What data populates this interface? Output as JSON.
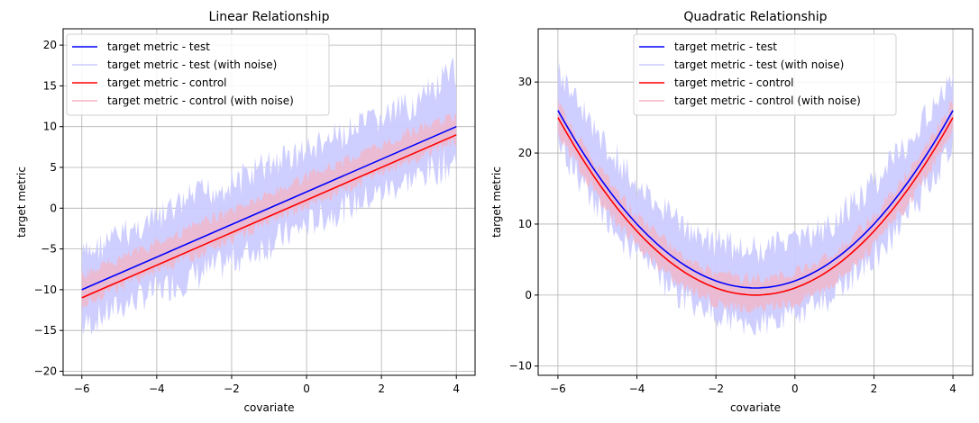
{
  "colors": {
    "test": "#0000ff",
    "control": "#ff0000",
    "test_noise": "#ccccff",
    "control_noise": "#f4b4c4",
    "grid": "#b0b0b0",
    "axis": "#000000"
  },
  "chart_data": [
    {
      "type": "line",
      "title": "Linear Relationship",
      "xlabel": "covariate",
      "ylabel": "target metric",
      "xlim": [
        -6.5,
        4.5
      ],
      "ylim": [
        -20.5,
        22
      ],
      "x_ticks": [
        -6,
        -4,
        -2,
        0,
        2,
        4
      ],
      "x_tick_labels": [
        "−6",
        "−4",
        "−2",
        "0",
        "2",
        "4"
      ],
      "y_ticks": [
        -20,
        -15,
        -10,
        -5,
        0,
        5,
        10,
        15,
        20
      ],
      "y_tick_labels": [
        "−20",
        "−15",
        "−10",
        "−5",
        "0",
        "5",
        "10",
        "15",
        "20"
      ],
      "grid": true,
      "legend_position": "top-left",
      "legend": [
        "target metric - test",
        "target metric - test (with noise)",
        "target metric - control",
        "target metric - control (with noise)"
      ],
      "series": [
        {
          "name": "target metric - test",
          "x": [
            -6,
            4
          ],
          "y": [
            -10,
            10
          ]
        },
        {
          "name": "target metric - control",
          "x": [
            -6,
            4
          ],
          "y": [
            -11,
            9
          ]
        }
      ],
      "noise_bands": [
        {
          "name": "target metric - test (with noise)",
          "x": [
            -6,
            -5,
            -4,
            -3,
            -2,
            -1,
            0,
            1,
            2,
            3,
            4
          ],
          "low": [
            -16.5,
            -14,
            -12,
            -10.5,
            -8.5,
            -6.5,
            -4,
            -2,
            0,
            2,
            3.5
          ],
          "high": [
            -4,
            -1.5,
            0.5,
            3.5,
            5,
            7.5,
            9,
            11,
            13,
            15,
            19
          ]
        },
        {
          "name": "target metric - control (with noise)",
          "x": [
            -6,
            -5,
            -4,
            -3,
            -2,
            -1,
            0,
            1,
            2,
            3,
            4
          ],
          "low": [
            -12.5,
            -10.5,
            -8.5,
            -6.5,
            -4.5,
            -2.5,
            -0.5,
            1.5,
            3.5,
            5.5,
            7.5
          ],
          "high": [
            -7.5,
            -5.5,
            -3.5,
            -1.5,
            0.5,
            2.5,
            4.5,
            6.5,
            8.5,
            10.5,
            12
          ]
        }
      ]
    },
    {
      "type": "line",
      "title": "Quadratic Relationship",
      "xlabel": "covariate",
      "ylabel": "target metric",
      "xlim": [
        -6.5,
        4.5
      ],
      "ylim": [
        -11.3,
        37.5
      ],
      "x_ticks": [
        -6,
        -4,
        -2,
        0,
        2,
        4
      ],
      "x_tick_labels": [
        "−6",
        "−4",
        "−2",
        "0",
        "2",
        "4"
      ],
      "y_ticks": [
        -10,
        0,
        10,
        20,
        30
      ],
      "y_tick_labels": [
        "−10",
        "0",
        "10",
        "20",
        "30"
      ],
      "grid": true,
      "legend_position": "top-center",
      "legend": [
        "target metric - test",
        "target metric - test (with noise)",
        "target metric - control",
        "target metric - control (with noise)"
      ],
      "series": [
        {
          "name": "target metric - test",
          "x": [
            -6,
            -5,
            -4,
            -3,
            -2,
            -1,
            0,
            1,
            2,
            3,
            4
          ],
          "y": [
            26,
            17,
            10,
            5,
            2,
            1,
            2,
            5,
            10,
            17,
            26
          ]
        },
        {
          "name": "target metric - control",
          "x": [
            -6,
            -5,
            -4,
            -3,
            -2,
            -1,
            0,
            1,
            2,
            3,
            4
          ],
          "y": [
            25,
            16,
            9,
            4,
            1,
            0,
            1,
            4,
            9,
            16,
            25
          ]
        }
      ],
      "noise_bands": [
        {
          "name": "target metric - test (with noise)",
          "x": [
            -6,
            -5,
            -4,
            -3,
            -2,
            -1,
            0,
            1,
            2,
            3,
            4
          ],
          "low": [
            19,
            10,
            3,
            -2,
            -5,
            -6,
            -5,
            -2,
            3,
            10,
            19
          ],
          "high": [
            34,
            25,
            18,
            12.5,
            9.5,
            8.5,
            9.5,
            12.5,
            18,
            25,
            32
          ]
        },
        {
          "name": "target metric - control (with noise)",
          "x": [
            -6,
            -5,
            -4,
            -3,
            -2,
            -1,
            0,
            1,
            2,
            3,
            4
          ],
          "low": [
            22,
            13,
            6,
            1,
            -2,
            -3,
            -2,
            1,
            6,
            13,
            22
          ],
          "high": [
            28,
            19,
            12,
            7,
            4,
            3,
            4,
            7,
            12,
            19,
            28
          ]
        }
      ]
    }
  ]
}
